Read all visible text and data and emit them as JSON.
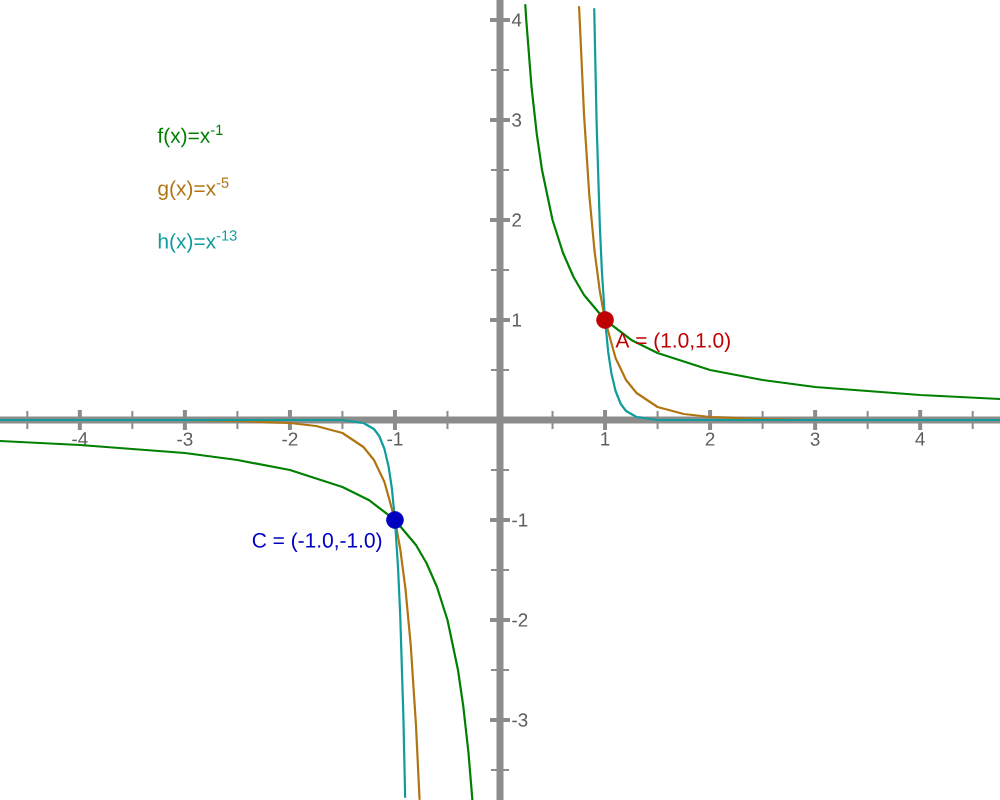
{
  "chart_data": {
    "type": "line",
    "xlim": [
      -4.76,
      4.76
    ],
    "ylim": [
      -3.8,
      4.2
    ],
    "xticks": [
      {
        "value": -4.5,
        "label": null
      },
      -4,
      {
        "value": -3.5,
        "label": null
      },
      -3,
      {
        "value": -2.5,
        "label": null
      },
      -2,
      {
        "value": -1.5,
        "label": null
      },
      -1,
      {
        "value": -0.5,
        "label": null
      },
      {
        "value": 0.5,
        "label": null
      },
      1,
      {
        "value": 1.5,
        "label": null
      },
      2,
      {
        "value": 2.5,
        "label": null
      },
      3,
      {
        "value": 3.5,
        "label": null
      },
      4,
      {
        "value": 4.5,
        "label": null
      }
    ],
    "yticks": [
      {
        "value": -3.5,
        "label": null
      },
      -3,
      {
        "value": -2.5,
        "label": null
      },
      -2,
      {
        "value": -1.5,
        "label": null
      },
      -1,
      {
        "value": -0.5,
        "label": null
      },
      {
        "value": 0.5,
        "label": null
      },
      1,
      {
        "value": 1.5,
        "label": null
      },
      2,
      {
        "value": 2.5,
        "label": null
      },
      3,
      {
        "value": 3.5,
        "label": null
      },
      4
    ],
    "legend": "top left",
    "series": [
      {
        "name": "f(x)=x$^{-1}$",
        "color": "#008000",
        "x": [
          -4.76,
          -4,
          -3.5,
          -3,
          -2.5,
          -2,
          -1.5,
          -1.25,
          -1,
          -0.8,
          -0.7,
          -0.6,
          -0.5,
          -0.4,
          -0.35,
          -0.3,
          -0.263,
          0,
          0.241,
          0.25,
          0.3,
          0.35,
          0.4,
          0.5,
          0.6,
          0.7,
          0.8,
          1,
          1.25,
          1.5,
          2,
          2.5,
          3,
          3.5,
          4,
          4.76
        ],
        "values": [
          -0.21,
          -0.25,
          -0.29,
          -0.33,
          -0.4,
          -0.5,
          -0.67,
          -0.8,
          -1,
          -1.25,
          -1.43,
          -1.67,
          -2,
          -2.5,
          -2.86,
          -3.33,
          -3.8,
          null,
          4.15,
          4,
          3.33,
          2.86,
          2.5,
          2,
          1.67,
          1.43,
          1.25,
          1,
          0.8,
          0.67,
          0.5,
          0.4,
          0.33,
          0.29,
          0.25,
          0.21
        ]
      },
      {
        "name": "g(x)=x$^{-5}$",
        "color": "#b07410",
        "x": [
          -4.76,
          -3,
          -2.5,
          -2,
          -1.75,
          -1.5,
          -1.3,
          -1.2,
          -1.1,
          -1,
          -0.95,
          -0.9,
          -0.85,
          -0.8,
          -0.766,
          0,
          0.753,
          0.8,
          0.85,
          0.9,
          0.95,
          1,
          1.1,
          1.2,
          1.3,
          1.5,
          1.75,
          2,
          2.5,
          3,
          4.76
        ],
        "values": [
          0,
          0,
          -0.01,
          -0.03,
          -0.06,
          -0.13,
          -0.27,
          -0.4,
          -0.62,
          -1,
          -1.29,
          -1.69,
          -2.25,
          -3.05,
          -3.79,
          null,
          4.13,
          3.05,
          2.25,
          1.69,
          1.29,
          1,
          0.62,
          0.4,
          0.27,
          0.13,
          0.06,
          0.03,
          0.01,
          0,
          0
        ]
      },
      {
        "name": "h(x)=x$^{-13}$",
        "color": "#109c9c",
        "x": [
          -4.76,
          -1.5,
          -1.3,
          -1.2,
          -1.15,
          -1.1,
          -1.06,
          -1.03,
          -1,
          -0.97,
          -0.95,
          -0.92,
          -0.903,
          0,
          0.897,
          0.92,
          0.95,
          0.97,
          1,
          1.03,
          1.06,
          1.1,
          1.15,
          1.2,
          1.3,
          1.5,
          4.76
        ],
        "values": [
          0,
          0,
          -0.03,
          -0.09,
          -0.16,
          -0.29,
          -0.47,
          -0.68,
          -1,
          -1.49,
          -1.95,
          -2.96,
          -3.77,
          null,
          4.11,
          2.96,
          1.95,
          1.49,
          1,
          0.68,
          0.47,
          0.29,
          0.16,
          0.09,
          0.03,
          0,
          0
        ]
      },
      {
        "type": "scatter",
        "color": "#c00000",
        "marker": "circle",
        "x": [
          1
        ],
        "values": [
          1
        ]
      },
      {
        "type": "scatter",
        "color": "#0000c0",
        "marker": "circle",
        "x": [
          -1
        ],
        "values": [
          -1
        ]
      }
    ],
    "annotations": [
      {
        "text": "A = (1.0,1.0)",
        "x": 1,
        "y": 1
      },
      {
        "text": "C = (-1.0,-1.0)",
        "x": -1,
        "y": -1
      }
    ]
  }
}
